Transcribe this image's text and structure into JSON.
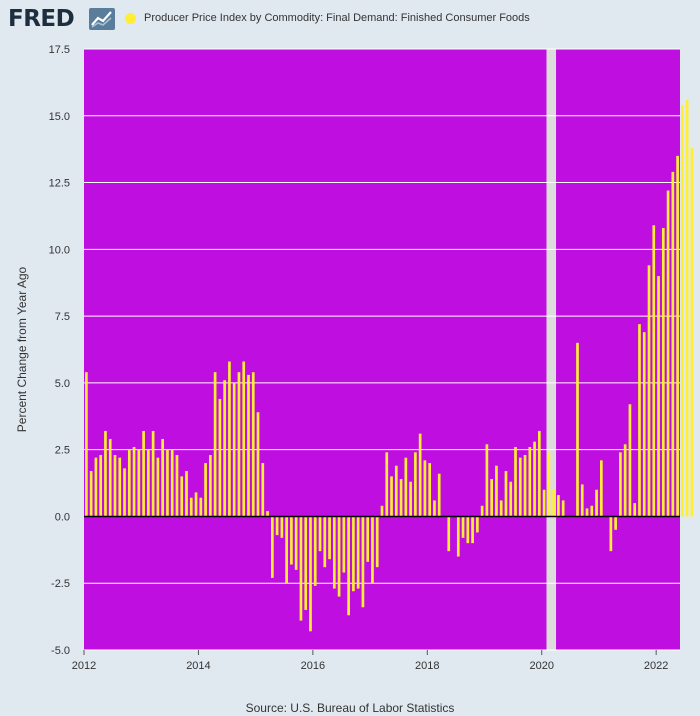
{
  "header": {
    "logo_text": "FRED",
    "logo_icon": "fred-trend-chart-icon",
    "legend_label": "Producer Price Index by Commodity: Final Demand: Finished Consumer Foods",
    "legend_color": "#ffee33"
  },
  "source": "Source: U.S. Bureau of Labor Statistics",
  "chart_data": {
    "type": "bar",
    "title": "",
    "xlabel": "",
    "ylabel": "Percent Change from Year Ago",
    "ylim": [
      -5.0,
      17.5
    ],
    "yticks": [
      "17.5",
      "15.0",
      "12.5",
      "10.0",
      "7.5",
      "5.0",
      "2.5",
      "0.0",
      "-2.5",
      "-5.0"
    ],
    "xticks": [
      "2012",
      "2014",
      "2016",
      "2018",
      "2020",
      "2022"
    ],
    "x_range": [
      "2012-01",
      "2022-05"
    ],
    "bar_color": "#ffee33",
    "plot_background": "#bf0ee0",
    "recession_band": {
      "start": "2020-02",
      "end": "2020-04",
      "color": "#dcdcdc"
    },
    "grid": true,
    "legend_position": "top",
    "series": [
      {
        "name": "Producer Price Index by Commodity: Final Demand: Finished Consumer Foods",
        "start": "2012-01",
        "frequency": "monthly",
        "values": [
          5.4,
          1.7,
          2.2,
          2.3,
          3.2,
          2.9,
          2.3,
          2.2,
          1.8,
          2.5,
          2.6,
          2.5,
          3.2,
          2.5,
          3.2,
          2.2,
          2.9,
          2.5,
          2.5,
          2.3,
          1.5,
          1.7,
          0.7,
          0.9,
          0.7,
          2.0,
          2.3,
          5.4,
          4.4,
          5.1,
          5.8,
          5.0,
          5.4,
          5.8,
          5.3,
          5.4,
          3.9,
          2.0,
          0.2,
          -2.3,
          -0.7,
          -0.8,
          -2.5,
          -1.8,
          -2.0,
          -3.9,
          -3.5,
          -4.3,
          -2.6,
          -1.3,
          -1.9,
          -1.6,
          -2.7,
          -3.0,
          -2.1,
          -3.7,
          -2.8,
          -2.7,
          -3.4,
          -1.7,
          -2.5,
          -1.9,
          0.4,
          2.4,
          1.5,
          1.9,
          1.4,
          2.2,
          1.3,
          2.4,
          3.1,
          2.1,
          2.0,
          0.6,
          1.6,
          0.0,
          -1.3,
          0.0,
          -1.5,
          -0.8,
          -1.0,
          -1.0,
          -0.6,
          0.4,
          2.7,
          1.4,
          1.9,
          0.6,
          1.7,
          1.3,
          2.6,
          2.2,
          2.3,
          2.6,
          2.8,
          3.2,
          1.0,
          2.4,
          1.0,
          0.8,
          0.6,
          0.0,
          0.0,
          6.5,
          1.2,
          0.3,
          0.4,
          1.0,
          2.1,
          0.0,
          -1.3,
          -0.5,
          2.4,
          2.7,
          4.2,
          0.5,
          7.2,
          6.9,
          9.4,
          10.9,
          9.0,
          10.8,
          12.2,
          12.9,
          13.5,
          15.4,
          15.6,
          13.8
        ]
      }
    ]
  }
}
